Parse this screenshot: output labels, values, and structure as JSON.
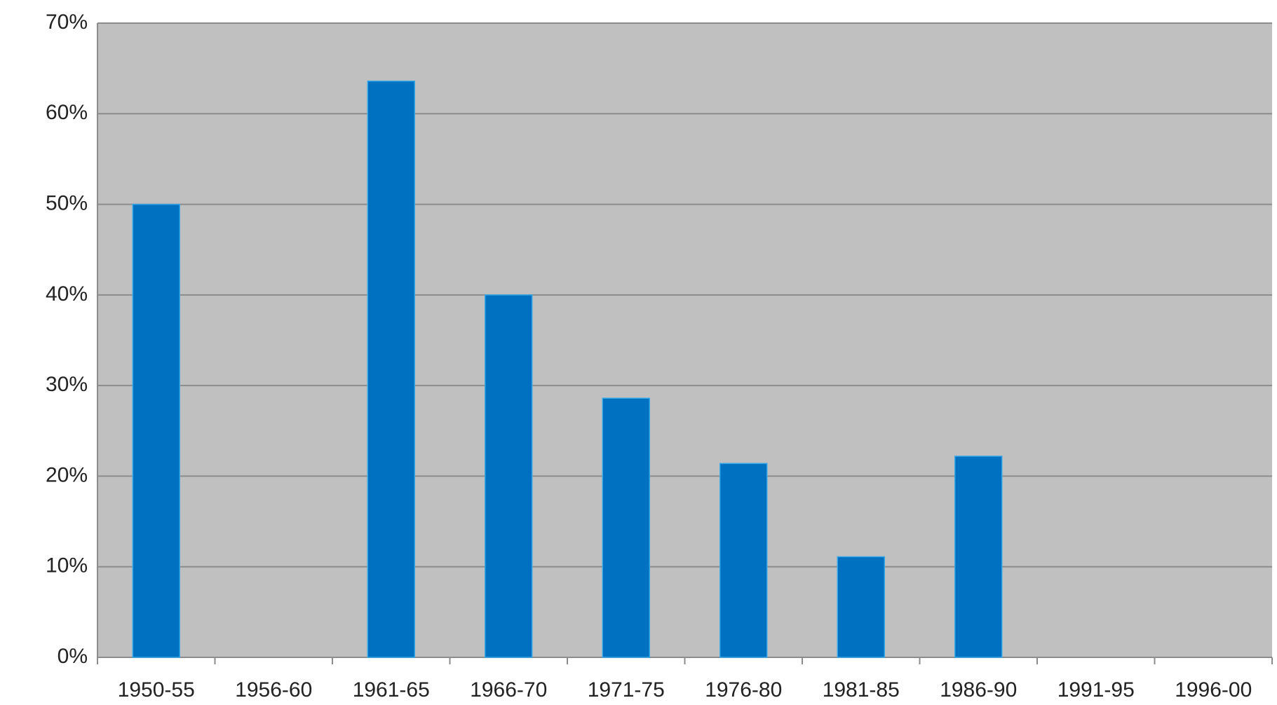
{
  "chart_data": {
    "type": "bar",
    "categories": [
      "1950-55",
      "1956-60",
      "1961-65",
      "1966-70",
      "1971-75",
      "1976-80",
      "1981-85",
      "1986-90",
      "1991-95",
      "1996-00"
    ],
    "values": [
      50,
      0,
      63.6,
      40,
      28.6,
      21.4,
      11.1,
      22.2,
      0,
      0
    ],
    "color": "#0070c0",
    "ylim": [
      0,
      70
    ],
    "yticks": [
      {
        "value": 0,
        "label": "0%"
      },
      {
        "value": 10,
        "label": "10%"
      },
      {
        "value": 20,
        "label": "20%"
      },
      {
        "value": 30,
        "label": "30%"
      },
      {
        "value": 40,
        "label": "40%"
      },
      {
        "value": 50,
        "label": "50%"
      },
      {
        "value": 60,
        "label": "60%"
      },
      {
        "value": 70,
        "label": "70%"
      }
    ],
    "grid": true,
    "background": "#c0c0c0"
  }
}
